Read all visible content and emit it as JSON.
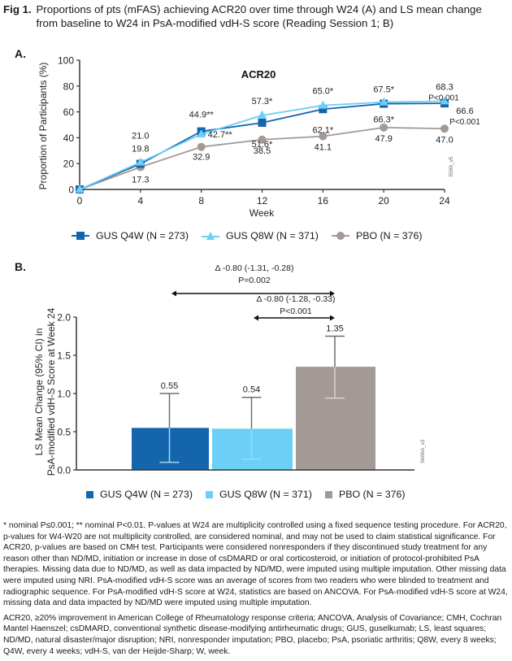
{
  "caption": {
    "label": "Fig 1.",
    "text": "Proportions of pts (mFAS) achieving ACR20 over time through W24 (A) and LS mean change from baseline to W24 in PsA-modified vdH-S score (Reading Session 1; B)"
  },
  "colors": {
    "gus_q4w": "#1565ad",
    "gus_q8w": "#6ccff6",
    "pbo": "#a39a95",
    "axis": "#333333"
  },
  "chart_data": [
    {
      "panel": "A.",
      "type": "line",
      "title": "ACR20",
      "xlabel": "Week",
      "ylabel": "Proportion of Participants (%)",
      "x": [
        0,
        4,
        8,
        12,
        16,
        20,
        24
      ],
      "xticks": [
        "0",
        "4",
        "8",
        "12",
        "16",
        "20",
        "24"
      ],
      "yticks": [
        "0",
        "20",
        "40",
        "60",
        "80",
        "100"
      ],
      "ylim": [
        0,
        100
      ],
      "xlim": [
        0,
        24
      ],
      "grid": false,
      "legend_position": "bottom",
      "series": [
        {
          "name": "GUS Q4W (N = 273)",
          "key": "gus_q4w",
          "marker": "square",
          "values": [
            0,
            19.8,
            44.9,
            51.6,
            62.1,
            66.3,
            66.6
          ],
          "labels": [
            "",
            "19.8",
            "44.9**",
            "51.6*",
            "62.1*",
            "66.3*",
            "66.6"
          ]
        },
        {
          "name": "GUS Q8W (N = 371)",
          "key": "gus_q8w",
          "marker": "triangle",
          "values": [
            0,
            21.0,
            42.7,
            57.3,
            65.0,
            67.5,
            68.3
          ],
          "labels": [
            "",
            "21.0",
            "42.7**",
            "57.3*",
            "65.0*",
            "67.5*",
            "68.3"
          ]
        },
        {
          "name": "PBO (N = 376)",
          "key": "pbo",
          "marker": "circle",
          "values": [
            0,
            17.3,
            32.9,
            38.5,
            41.1,
            47.9,
            47.0
          ],
          "labels": [
            "",
            "17.3",
            "32.9",
            "38.5",
            "41.1",
            "47.9",
            "47.0"
          ]
        }
      ],
      "annotations": {
        "q8w_p": "P<0.001",
        "q4w_p": "P<0.001",
        "code": "5599_v5"
      }
    },
    {
      "panel": "B.",
      "type": "bar",
      "title": "",
      "ylabel_line1": "LS Mean Change (95% CI) in",
      "ylabel_line2": "PsA-modified vdH-S Score at Week 24",
      "ylim": [
        0,
        2.0
      ],
      "yticks": [
        "0.0",
        "0.5",
        "1.0",
        "1.5",
        "2.0"
      ],
      "legend_position": "bottom",
      "categories": [
        "GUS Q4W (N = 273)",
        "GUS Q8W (N = 371)",
        "PBO (N = 376)"
      ],
      "keys": [
        "gus_q4w",
        "gus_q8w",
        "pbo"
      ],
      "values": [
        0.55,
        0.54,
        1.35
      ],
      "value_labels": [
        "0.55",
        "0.54",
        "1.35"
      ],
      "ci_low": [
        0.1,
        0.14,
        0.94
      ],
      "ci_high": [
        1.0,
        0.95,
        1.75
      ],
      "comparisons": [
        {
          "from": "GUS Q4W",
          "to": "PBO",
          "delta": "Δ -0.80 (-1.31, -0.28)",
          "p": "P=0.002"
        },
        {
          "from": "GUS Q8W",
          "to": "PBO",
          "delta": "Δ -0.80 (-1.28, -0.33)",
          "p": "P<0.001"
        }
      ],
      "code": "5606A_v2"
    }
  ],
  "footnotes": {
    "p1": "* nominal P≤0.001; ** nominal P<0.01. P-values at W24 are multiplicity controlled using a fixed sequence testing procedure. For ACR20, p-values for W4-W20 are not multiplicity controlled, are considered nominal, and may not be used to claim statistical significance. For ACR20, p-values are based on CMH test. Participants were considered nonresponders if they discontinued study treatment for any reason other than ND/MD, initiation or increase in dose of csDMARD or oral corticosteroid, or initiation of protocol-prohibited PsA therapies. Missing data due to ND/MD, as well as data impacted by ND/MD, were imputed using multiple imputation. Other missing data were imputed using NRI. PsA-modified vdH-S score was an average of scores from two readers who were blinded to treatment and radiographic sequence. For PsA-modified vdH-S score at W24, statistics are based on ANCOVA. For PsA-modified vdH-S score at W24, missing data and data impacted by ND/MD were imputed using multiple imputation.",
    "p2": "ACR20, ≥20% improvement in American College of Rheumatology response criteria; ANCOVA, Analysis of Covariance; CMH, Cochran Mantel Haenszel; csDMARD, conventional synthetic disease-modifying antirheumatic drugs; GUS, guselkumab; LS, least squares; ND/MD, natural disaster/major disruption; NRI, nonresponder imputation; PBO, placebo; PsA, psoriatic arthritis; Q8W, every 8 weeks; Q4W, every 4 weeks; vdH-S, van der Heijde-Sharp; W, week."
  }
}
